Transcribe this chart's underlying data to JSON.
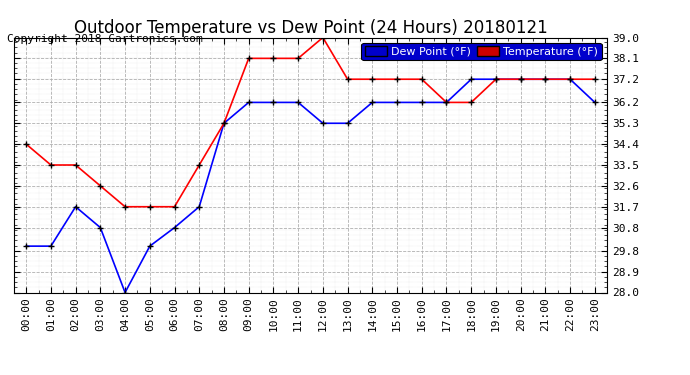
{
  "title": "Outdoor Temperature vs Dew Point (24 Hours) 20180121",
  "copyright": "Copyright 2018 Cartronics.com",
  "legend_dew": "Dew Point (°F)",
  "legend_temp": "Temperature (°F)",
  "hours": [
    "00:00",
    "01:00",
    "02:00",
    "03:00",
    "04:00",
    "05:00",
    "06:00",
    "07:00",
    "08:00",
    "09:00",
    "10:00",
    "11:00",
    "12:00",
    "13:00",
    "14:00",
    "15:00",
    "16:00",
    "17:00",
    "18:00",
    "19:00",
    "20:00",
    "21:00",
    "22:00",
    "23:00"
  ],
  "temperature": [
    34.4,
    33.5,
    33.5,
    32.6,
    31.7,
    31.7,
    31.7,
    33.5,
    35.3,
    38.1,
    38.1,
    38.1,
    39.0,
    37.2,
    37.2,
    37.2,
    37.2,
    36.2,
    36.2,
    37.2,
    37.2,
    37.2,
    37.2,
    37.2
  ],
  "dew_point": [
    30.0,
    30.0,
    31.7,
    30.8,
    28.0,
    30.0,
    30.8,
    31.7,
    35.3,
    36.2,
    36.2,
    36.2,
    35.3,
    35.3,
    36.2,
    36.2,
    36.2,
    36.2,
    37.2,
    37.2,
    37.2,
    37.2,
    37.2,
    36.2
  ],
  "temp_color": "#ff0000",
  "dew_color": "#0000ff",
  "bg_color": "#ffffff",
  "grid_color": "#b0b0b0",
  "ylim": [
    28.0,
    39.0
  ],
  "yticks": [
    28.0,
    28.9,
    29.8,
    30.8,
    31.7,
    32.6,
    33.5,
    34.4,
    35.3,
    36.2,
    37.2,
    38.1,
    39.0
  ],
  "title_fontsize": 12,
  "copyright_fontsize": 8,
  "legend_fontsize": 8,
  "axis_fontsize": 8,
  "legend_dew_bg": "#0000cc",
  "legend_temp_bg": "#cc0000"
}
